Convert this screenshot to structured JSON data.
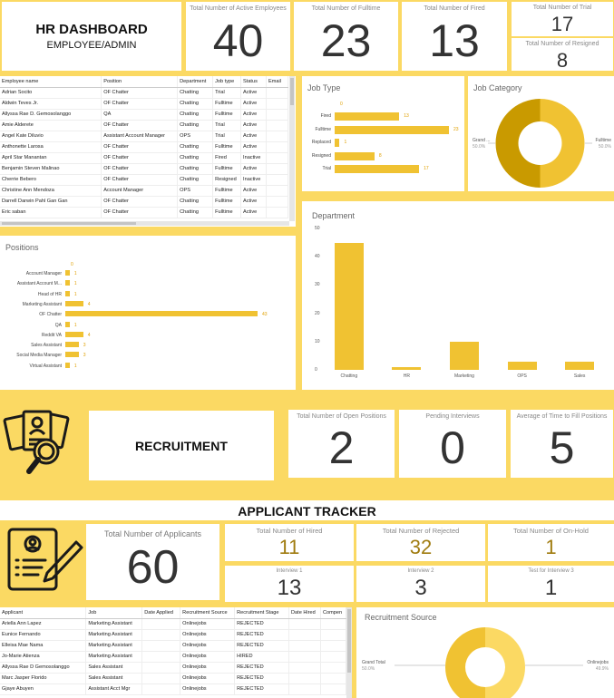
{
  "header": {
    "title": "HR DASHBOARD",
    "subtitle": "EMPLOYEE/ADMIN"
  },
  "kpis_top": [
    {
      "label": "Total Number of Active Employees",
      "value": "40"
    },
    {
      "label": "Total Number of Fulltime",
      "value": "23"
    },
    {
      "label": "Total Number of Fired",
      "value": "13"
    },
    {
      "label": "Total Number of Trial",
      "value": "17"
    },
    {
      "label": "Total Number of Resigned",
      "value": "8"
    }
  ],
  "employee_table": {
    "columns": [
      "Employee name",
      "Position",
      "Department",
      "Job type",
      "Status",
      "Email"
    ],
    "rows": [
      [
        "Adrian Socito",
        "OF Chatter",
        "Chatting",
        "Trial",
        "Active",
        ""
      ],
      [
        "Aldwin Teves Jr.",
        "OF Chatter",
        "Chatting",
        "Fulltime",
        "Active",
        ""
      ],
      [
        "Allyssa Rae D. Gemosolanggo",
        "QA",
        "Chatting",
        "Fulltime",
        "Active",
        ""
      ],
      [
        "Amie Alderete",
        "OF Chatter",
        "Chatting",
        "Trial",
        "Active",
        ""
      ],
      [
        "Angel Kate Diluvio",
        "Assistant Account Manager",
        "OPS",
        "Trial",
        "Active",
        ""
      ],
      [
        "Anthonette Larosa",
        "OF Chatter",
        "Chatting",
        "Fulltime",
        "Active",
        ""
      ],
      [
        "April Star Manantan",
        "OF Chatter",
        "Chatting",
        "Fired",
        "Inactive",
        ""
      ],
      [
        "Benjamin Steven Malinao",
        "OF Chatter",
        "Chatting",
        "Fulltime",
        "Active",
        ""
      ],
      [
        "Cherrie Bebero",
        "OF Chatter",
        "Chatting",
        "Resigned",
        "Inactive",
        ""
      ],
      [
        "Christine Ann Mendoza",
        "Account Manager",
        "OPS",
        "Fulltime",
        "Active",
        ""
      ],
      [
        "Darrell Darwin Pahl Gan Gan",
        "OF Chatter",
        "Chatting",
        "Fulltime",
        "Active",
        ""
      ],
      [
        "Eric saban",
        "OF Chatter",
        "Chatting",
        "Fulltime",
        "Active",
        ""
      ]
    ]
  },
  "job_type": {
    "title": "Job Type",
    "top_value": "0",
    "bars": [
      {
        "label": "Fired",
        "value": 13
      },
      {
        "label": "Fulltime",
        "value": 23
      },
      {
        "label": "Replaced",
        "value": 1
      },
      {
        "label": "Resigned",
        "value": 8
      },
      {
        "label": "Trial",
        "value": 17
      }
    ]
  },
  "job_category": {
    "title": "Job Category",
    "left_label": "Grand ...",
    "left_pct": "50.0%",
    "right_label": "Fulltime",
    "right_pct": "50.0%",
    "colors": [
      "#c99a00",
      "#f0c232"
    ]
  },
  "positions": {
    "title": "Positions",
    "top_value": "0",
    "bars": [
      {
        "label": "Account Manager",
        "value": 1
      },
      {
        "label": "Assistant Account M...",
        "value": 1
      },
      {
        "label": "Head of HR",
        "value": 1
      },
      {
        "label": "Marketing Assistant",
        "value": 4
      },
      {
        "label": "OF Chatter",
        "value": 43
      },
      {
        "label": "QA",
        "value": 1
      },
      {
        "label": "Reddit VA",
        "value": 4
      },
      {
        "label": "Sales Assistant",
        "value": 3
      },
      {
        "label": "Social Media Manager",
        "value": 3
      },
      {
        "label": "Virtual Assistant",
        "value": 1
      }
    ]
  },
  "department": {
    "title": "Department",
    "yticks": [
      "50",
      "40",
      "30",
      "20",
      "10",
      "0"
    ],
    "ymax": 50,
    "bars": [
      {
        "label": "Chatting",
        "value": 45
      },
      {
        "label": "HR",
        "value": 1
      },
      {
        "label": "Marketing",
        "value": 10
      },
      {
        "label": "OPS",
        "value": 3
      },
      {
        "label": "Sales",
        "value": 3
      }
    ]
  },
  "recruitment": {
    "title": "RECRUITMENT",
    "kpis": [
      {
        "label": "Total Number of Open Positions",
        "value": "2"
      },
      {
        "label": "Pending Interviews",
        "value": "0"
      },
      {
        "label": "Average of Time to Fill Positions",
        "value": "5"
      }
    ]
  },
  "applicant_tracker": {
    "title": "APPLICANT TRACKER",
    "total": {
      "label": "Total Number of Applicants",
      "value": "60"
    },
    "kpis_row1": [
      {
        "label": "Total Number of Hired",
        "value": "11"
      },
      {
        "label": "Total Number of Rejected",
        "value": "32"
      },
      {
        "label": "Total Number of On-Hold",
        "value": "1"
      }
    ],
    "kpis_row2": [
      {
        "label": "Interview 1",
        "value": "13"
      },
      {
        "label": "Interview 2",
        "value": "3"
      },
      {
        "label": "Test for Interview 3",
        "value": "1"
      }
    ],
    "colors": {
      "gold_value": "#a07c10",
      "dark_value": "#333333"
    }
  },
  "applicant_table": {
    "columns": [
      "Applicant",
      "Job",
      "Date Applied",
      "Recruitment Source",
      "Recruitment Stage",
      "Date Hired",
      "Compen"
    ],
    "rows": [
      [
        "Ariella Ann Lapez",
        "Marketing Assistant",
        "",
        "Onlinejobs",
        "REJECTED",
        "",
        ""
      ],
      [
        "Eunice Fernando",
        "Marketing Assistant",
        "",
        "Onlinejobs",
        "REJECTED",
        "",
        ""
      ],
      [
        "Elleisa Mae Nama",
        "Marketing Assistant",
        "",
        "Onlinejobs",
        "REJECTED",
        "",
        ""
      ],
      [
        "Jo-Marie Atienza",
        "Marketing Assistant",
        "",
        "Onlinejobs",
        "HIRED",
        "",
        ""
      ],
      [
        "Allyssa Rae D Gemosolanggo",
        "Sales Assistant",
        "",
        "Onlinejobs",
        "REJECTED",
        "",
        ""
      ],
      [
        "Marc Jasper Florido",
        "Sales Assistant",
        "",
        "Onlinejobs",
        "REJECTED",
        "",
        ""
      ],
      [
        "Gjaye Abuyen",
        "Assistant Acct Mgr",
        "",
        "Onlinejobs",
        "REJECTED",
        "",
        ""
      ]
    ]
  },
  "recruitment_source": {
    "title": "Recruitment Source",
    "left_label": "Grand Total",
    "left_pct": "50.0%",
    "right_label": "Onlinejobs",
    "right_pct": "49.9%",
    "colors": [
      "#f0c232",
      "#fbd963"
    ]
  },
  "colors": {
    "background": "#fbd963",
    "bar": "#f0c232",
    "dark_gold": "#c99a00"
  }
}
